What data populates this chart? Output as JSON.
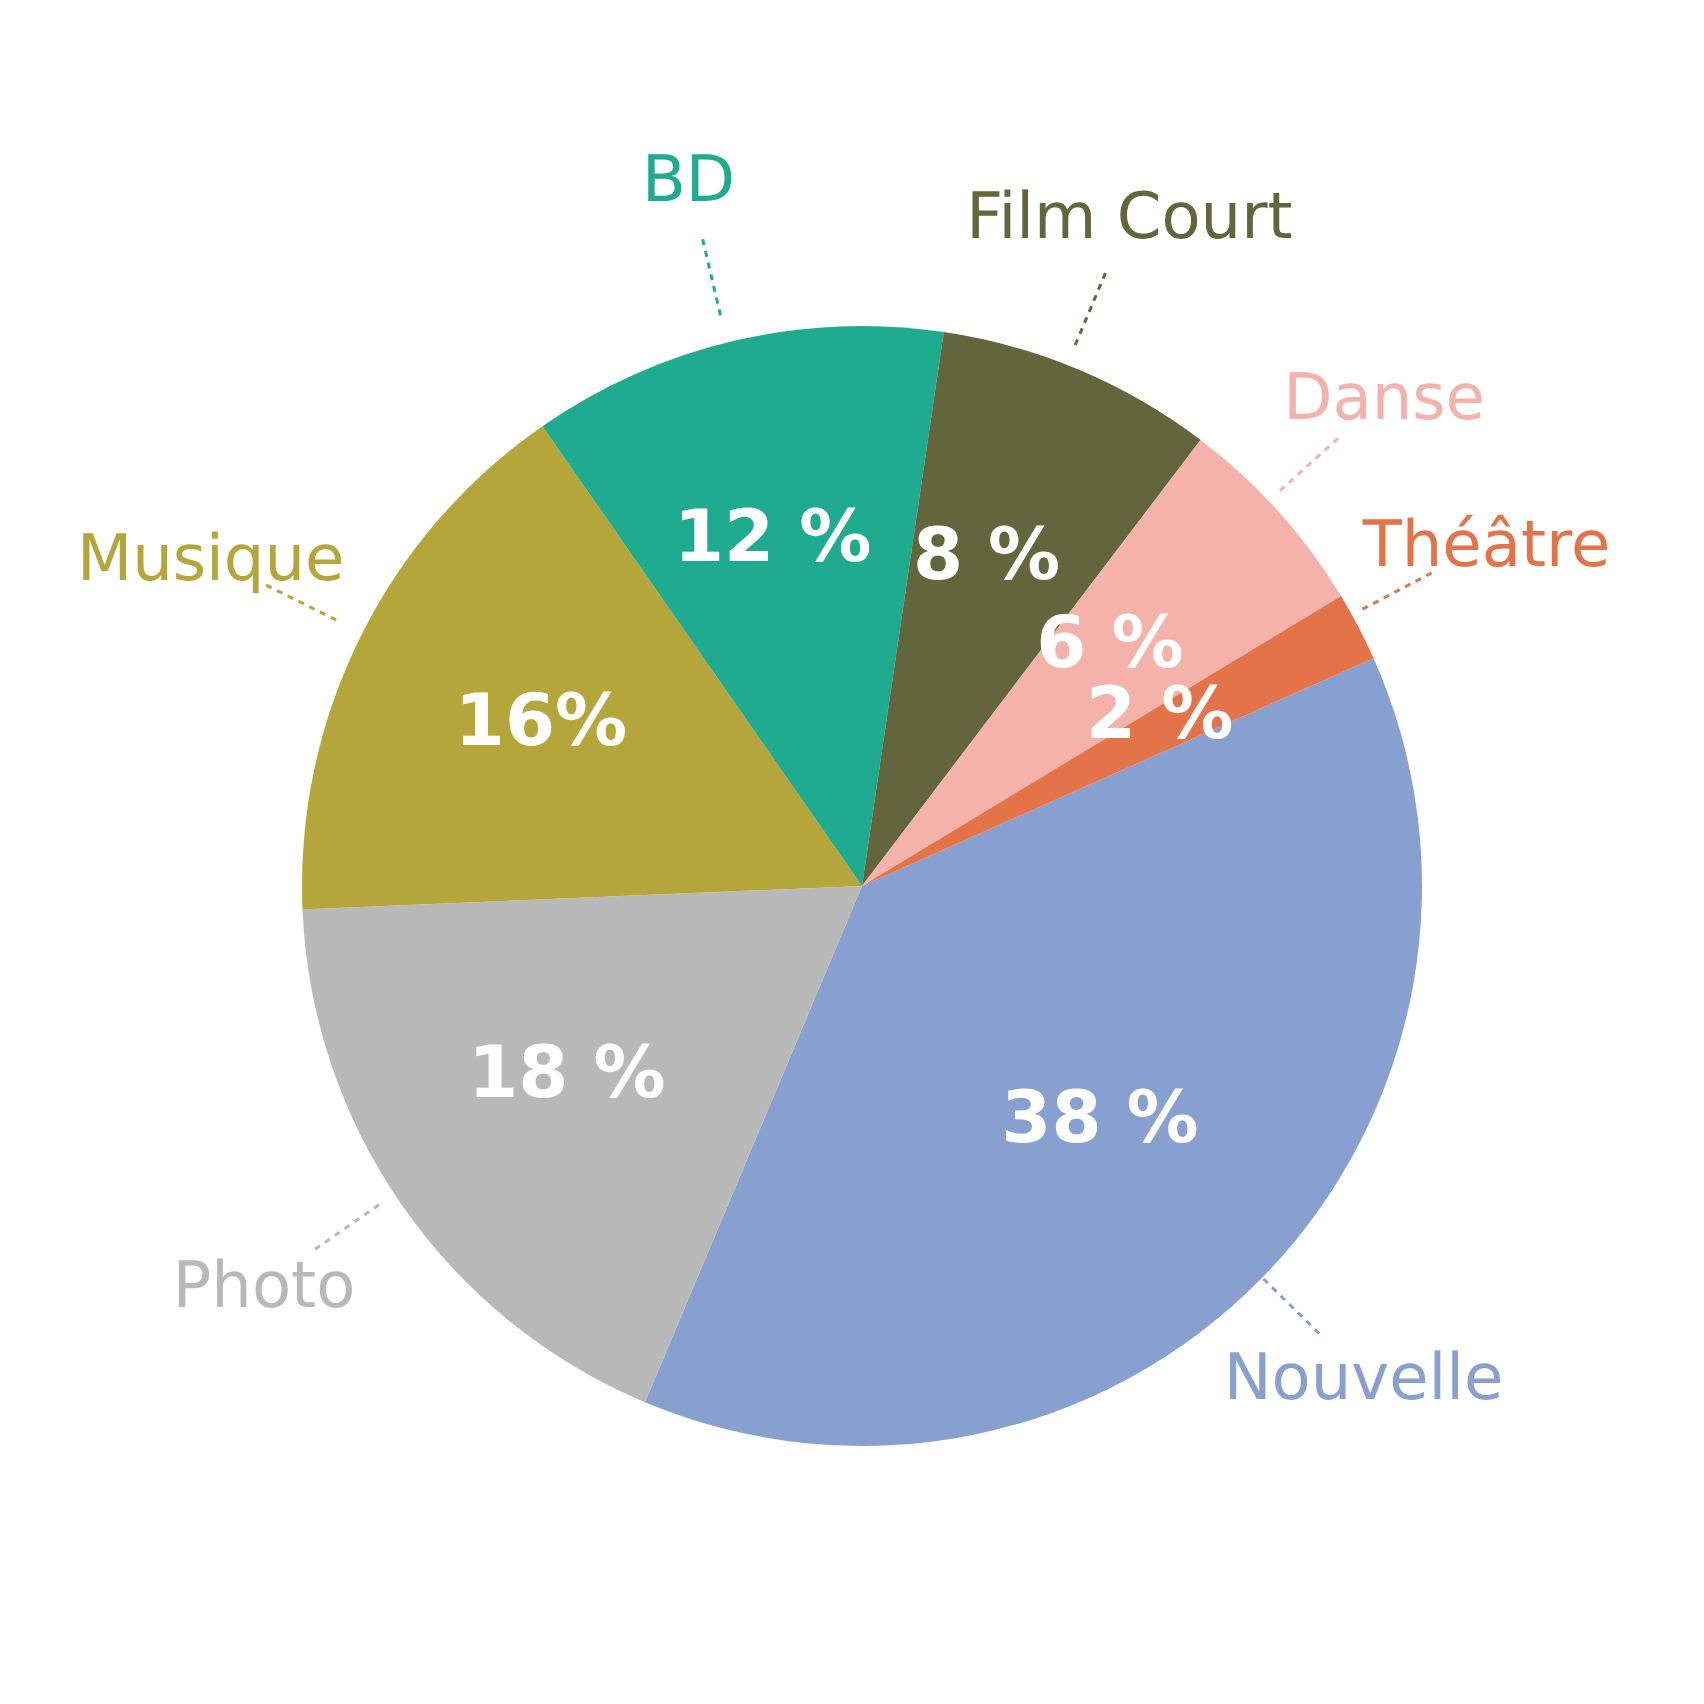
{
  "chart_data": {
    "type": "pie",
    "categories": [
      "Nouvelle",
      "Photo",
      "Musique",
      "BD",
      "Film Court",
      "Danse",
      "Théâtre"
    ],
    "values": [
      38,
      18,
      16,
      12,
      8,
      6,
      2
    ],
    "value_labels": [
      "38 %",
      "18 %",
      "16%",
      "12 %",
      "8 %",
      "6 %",
      "2 %"
    ],
    "colors": [
      "#87a0d0",
      "#b8b8b8",
      "#b5a63c",
      "#1fab8f",
      "#63653d",
      "#f4b2aa",
      "#e5734a"
    ],
    "legend": false
  }
}
